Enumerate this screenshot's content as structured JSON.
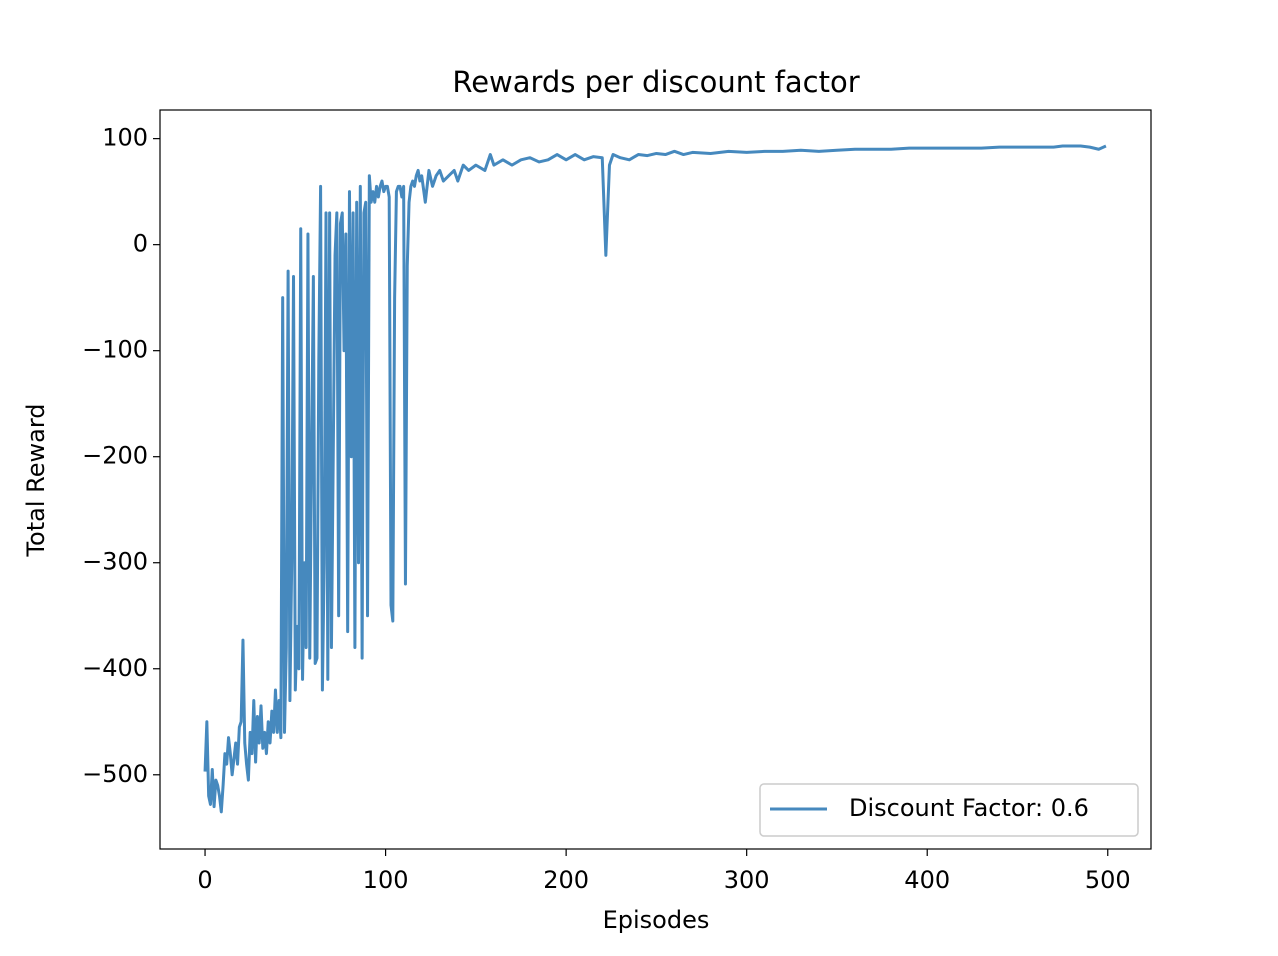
{
  "chart_data": {
    "type": "line",
    "title": "Rewards per discount factor",
    "xlabel": "Episodes",
    "ylabel": "Total Reward",
    "x": [
      0,
      1,
      2,
      3,
      4,
      5,
      6,
      7,
      8,
      9,
      10,
      11,
      12,
      13,
      14,
      15,
      16,
      17,
      18,
      19,
      20,
      21,
      22,
      23,
      24,
      25,
      26,
      27,
      28,
      29,
      30,
      31,
      32,
      33,
      34,
      35,
      36,
      37,
      38,
      39,
      40,
      41,
      42,
      43,
      44,
      45,
      46,
      47,
      48,
      49,
      50,
      51,
      52,
      53,
      54,
      55,
      56,
      57,
      58,
      59,
      60,
      61,
      62,
      63,
      64,
      65,
      66,
      67,
      68,
      69,
      70,
      71,
      72,
      73,
      74,
      75,
      76,
      77,
      78,
      79,
      80,
      81,
      82,
      83,
      84,
      85,
      86,
      87,
      88,
      89,
      90,
      91,
      92,
      93,
      94,
      95,
      96,
      97,
      98,
      99,
      100,
      101,
      102,
      103,
      104,
      105,
      106,
      107,
      108,
      109,
      110,
      111,
      112,
      113,
      114,
      115,
      116,
      117,
      118,
      119,
      120,
      122,
      124,
      126,
      128,
      130,
      132,
      135,
      138,
      140,
      143,
      146,
      150,
      155,
      158,
      160,
      165,
      170,
      175,
      180,
      185,
      190,
      195,
      200,
      205,
      210,
      215,
      220,
      222,
      224,
      226,
      230,
      235,
      240,
      245,
      250,
      255,
      260,
      265,
      270,
      280,
      290,
      300,
      310,
      320,
      330,
      340,
      350,
      360,
      370,
      380,
      390,
      400,
      410,
      420,
      430,
      440,
      450,
      460,
      470,
      475,
      480,
      485,
      490,
      495,
      499
    ],
    "series": [
      {
        "name": "Discount Factor: 0.6",
        "color": "#4689be",
        "axis": "y",
        "values": [
          -497,
          -450,
          -520,
          -528,
          -495,
          -530,
          -505,
          -510,
          -520,
          -535,
          -510,
          -480,
          -490,
          -465,
          -480,
          -500,
          -485,
          -470,
          -490,
          -455,
          -450,
          -373,
          -470,
          -490,
          -505,
          -460,
          -480,
          -430,
          -488,
          -445,
          -470,
          -435,
          -475,
          -460,
          -480,
          -450,
          -470,
          -440,
          -460,
          -420,
          -460,
          -430,
          -465,
          -50,
          -460,
          -380,
          -25,
          -430,
          -300,
          -30,
          -420,
          -360,
          -400,
          15,
          -410,
          -300,
          -380,
          10,
          -390,
          -200,
          -30,
          -395,
          -390,
          -110,
          55,
          -420,
          -300,
          30,
          -410,
          30,
          -380,
          -200,
          -10,
          30,
          -350,
          20,
          30,
          -100,
          10,
          -365,
          50,
          -200,
          30,
          -380,
          40,
          -300,
          55,
          -390,
          30,
          40,
          -350,
          65,
          40,
          50,
          40,
          55,
          45,
          55,
          60,
          50,
          55,
          55,
          45,
          -340,
          -355,
          -50,
          50,
          55,
          55,
          45,
          55,
          -320,
          -20,
          40,
          55,
          60,
          55,
          65,
          70,
          60,
          65,
          40,
          70,
          55,
          65,
          70,
          60,
          65,
          70,
          60,
          75,
          70,
          75,
          70,
          85,
          75,
          80,
          75,
          80,
          82,
          78,
          80,
          85,
          80,
          85,
          80,
          83,
          82,
          -10,
          75,
          85,
          82,
          80,
          85,
          84,
          86,
          85,
          88,
          85,
          87,
          86,
          88,
          87,
          88,
          88,
          89,
          88,
          89,
          90,
          90,
          90,
          91,
          91,
          91,
          91,
          91,
          92,
          92,
          92,
          92,
          93,
          93,
          93,
          92,
          90,
          93
        ]
      }
    ],
    "xlim": [
      -24.95,
      523.95
    ],
    "ylim": [
      -570,
      127
    ],
    "xticks": [
      0,
      100,
      200,
      300,
      400,
      500
    ],
    "yticks": [
      {
        "value": -500,
        "label": "−500"
      },
      {
        "value": -400,
        "label": "−400"
      },
      {
        "value": -300,
        "label": "−300"
      },
      {
        "value": -200,
        "label": "−200"
      },
      {
        "value": -100,
        "label": "−100"
      },
      0,
      100
    ],
    "legend": "lower right"
  }
}
